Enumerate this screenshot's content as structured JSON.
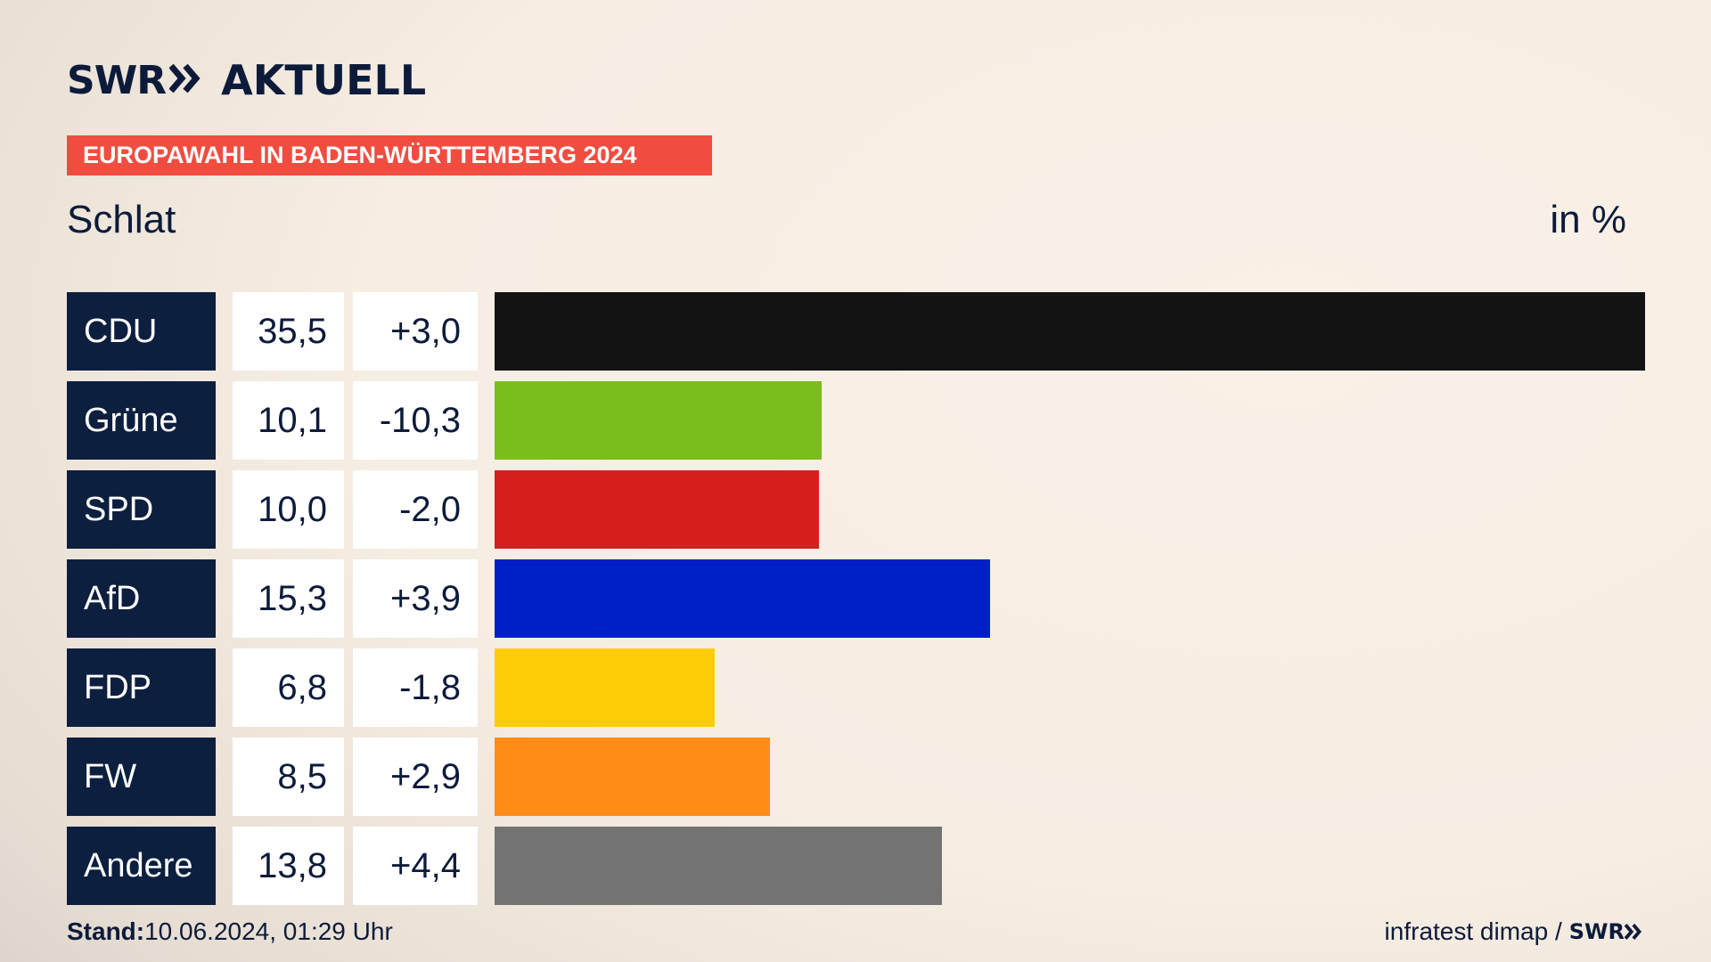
{
  "header": {
    "brand": "SWR",
    "section": "AKTUELL",
    "banner": "EUROPAWAHL IN BADEN-WÜRTTEMBERG 2024",
    "place": "Schlat",
    "unit": "in %"
  },
  "footer": {
    "stand_label": "Stand:",
    "stand_value": "10.06.2024, 01:29 Uhr",
    "source": "infratest dimap /",
    "brand": "SWR"
  },
  "chart_data": {
    "type": "bar",
    "orientation": "horizontal",
    "categories": [
      "CDU",
      "Grüne",
      "SPD",
      "AfD",
      "FDP",
      "FW",
      "Andere"
    ],
    "values": [
      35.5,
      10.1,
      10.0,
      15.3,
      6.8,
      8.5,
      13.8
    ],
    "value_labels": [
      "35,5",
      "10,1",
      "10,0",
      "15,3",
      "6,8",
      "8,5",
      "13,8"
    ],
    "changes": [
      3.0,
      -10.3,
      -2.0,
      3.9,
      -1.8,
      2.9,
      4.4
    ],
    "change_labels": [
      "+3,0",
      "-10,3",
      "-2,0",
      "+3,9",
      "-1,8",
      "+2,9",
      "+4,4"
    ],
    "colors": [
      "#131313",
      "#7abd1c",
      "#d61f1e",
      "#0020c7",
      "#ffcc08",
      "#fe8c17",
      "#737373"
    ],
    "xlim": [
      0,
      35.5
    ],
    "title": "",
    "xlabel": "",
    "ylabel": ""
  }
}
